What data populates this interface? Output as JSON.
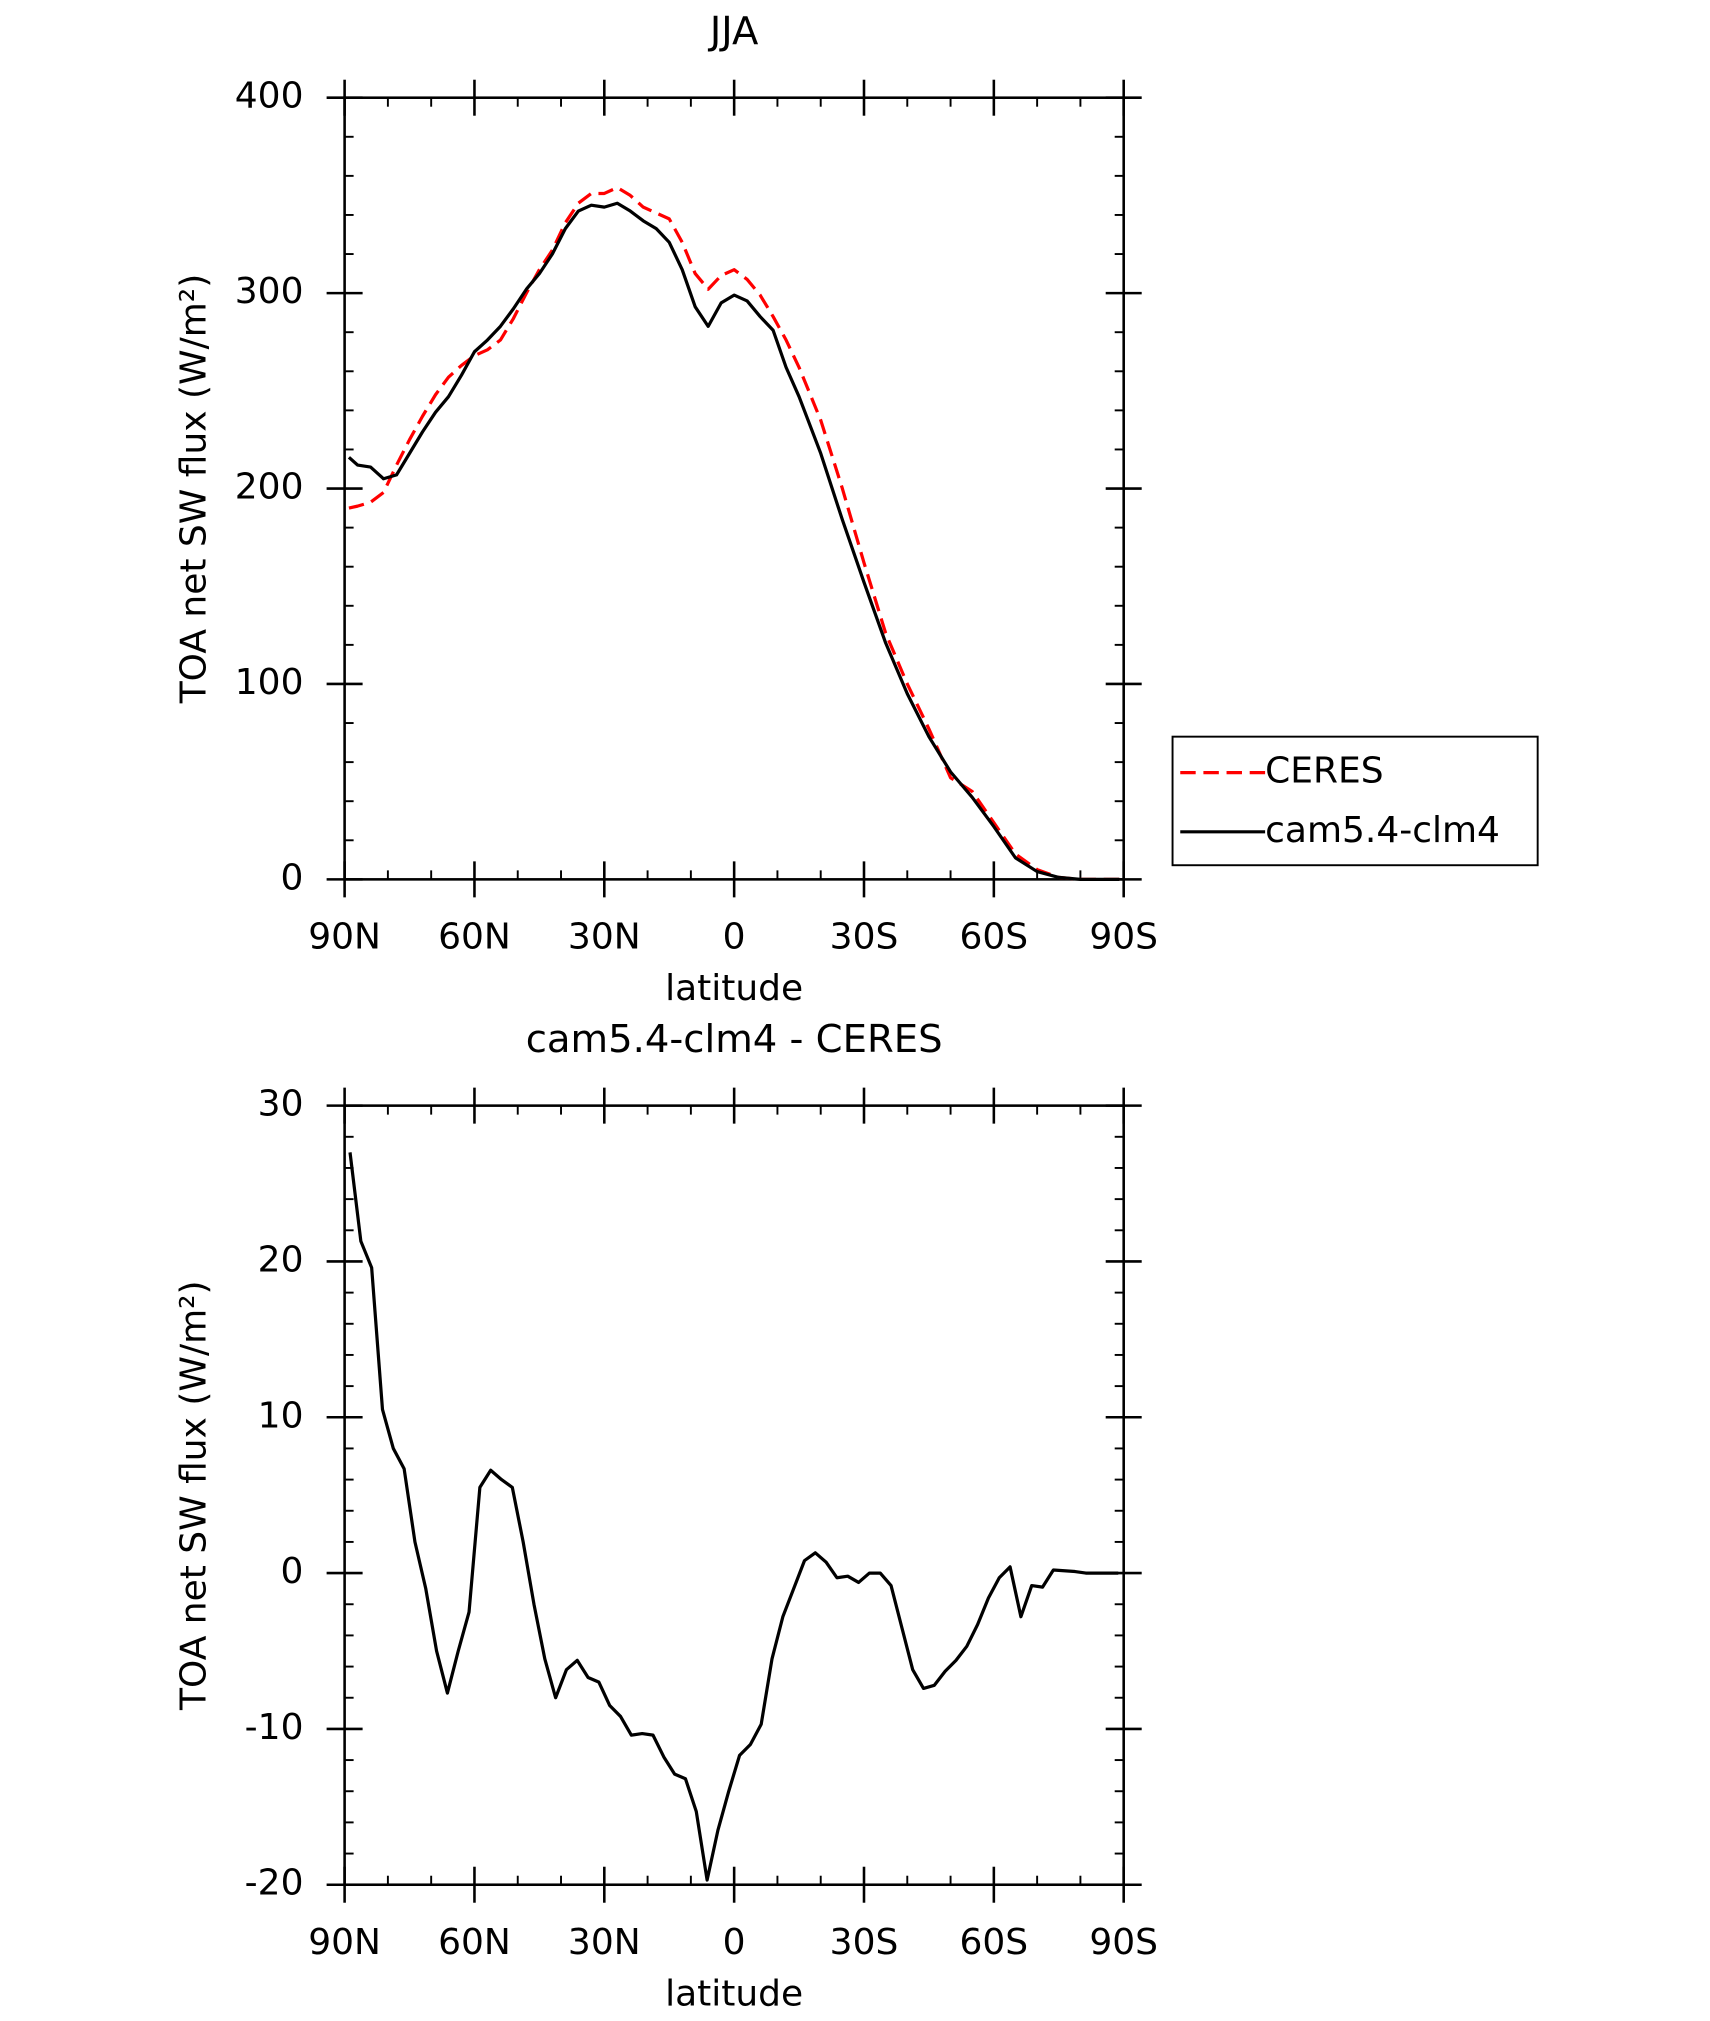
{
  "chart_data": [
    {
      "type": "line",
      "title": "JJA",
      "xlabel": "latitude",
      "ylabel": "TOA net SW flux (W/m²)",
      "x": [
        89,
        87,
        84,
        81,
        78,
        75,
        72,
        69,
        66,
        63,
        60,
        57,
        54,
        51,
        48,
        45,
        42,
        39,
        36,
        33,
        30,
        27,
        24,
        21,
        18,
        15,
        12,
        9,
        6,
        3,
        0,
        -3,
        -6,
        -9,
        -12,
        -15,
        -20,
        -25,
        -30,
        -35,
        -40,
        -45,
        -50,
        -55,
        -60,
        -65,
        -70,
        -75,
        -80,
        -85,
        -89
      ],
      "series": [
        {
          "name": "CERES",
          "color": "#ff0000",
          "dash": true,
          "values": [
            190,
            191,
            193,
            198,
            212,
            225,
            237,
            248,
            257,
            263,
            268,
            271,
            276,
            287,
            300,
            312,
            322,
            336,
            346,
            351,
            351,
            354,
            350,
            344,
            341,
            338,
            326,
            310,
            302,
            309,
            312,
            307,
            299,
            288,
            276,
            262,
            235,
            200,
            162,
            126,
            100,
            77,
            52,
            45,
            29,
            13,
            5,
            1,
            0,
            0,
            0
          ]
        },
        {
          "name": "cam5.4-clm4",
          "color": "#000000",
          "dash": false,
          "values": [
            216,
            212,
            211,
            205,
            207,
            218,
            229,
            239,
            247,
            258,
            270,
            276,
            283,
            292,
            302,
            310,
            320,
            333,
            342,
            345,
            344,
            346,
            342,
            337,
            333,
            326,
            312,
            293,
            283,
            295,
            299,
            296,
            288,
            281,
            262,
            247,
            218,
            184,
            152,
            121,
            95,
            73,
            55,
            42,
            27,
            11,
            4,
            1,
            0,
            0,
            0
          ]
        }
      ],
      "xlim": [
        90,
        -90
      ],
      "xticks": [
        {
          "value": 90,
          "label": "90N"
        },
        {
          "value": 60,
          "label": "60N"
        },
        {
          "value": 30,
          "label": "30N"
        },
        0,
        {
          "value": -30,
          "label": "30S"
        },
        {
          "value": -60,
          "label": "60S"
        },
        {
          "value": -90,
          "label": "90S"
        }
      ],
      "ylim": [
        0,
        400
      ],
      "yticks": [
        0,
        100,
        200,
        300,
        400
      ],
      "legend": "right"
    },
    {
      "type": "line",
      "title": "cam5.4-clm4 - CERES",
      "xlabel": "latitude",
      "ylabel": "TOA net SW flux (W/m²)",
      "x": [
        88.75,
        86.25,
        83.75,
        81.25,
        78.75,
        76.25,
        73.75,
        71.25,
        68.75,
        66.25,
        63.75,
        61.25,
        58.75,
        56.25,
        53.75,
        51.25,
        48.75,
        46.25,
        43.75,
        41.25,
        38.75,
        36.25,
        33.75,
        31.25,
        28.75,
        26.25,
        23.75,
        21.25,
        18.75,
        16.25,
        13.75,
        11.25,
        8.75,
        6.25,
        3.75,
        1.25,
        -1.25,
        -3.75,
        -6.25,
        -8.75,
        -11.25,
        -13.75,
        -16.25,
        -18.75,
        -21.25,
        -23.75,
        -26.25,
        -28.75,
        -31.25,
        -33.75,
        -36.25,
        -38.75,
        -41.25,
        -43.75,
        -46.25,
        -48.75,
        -51.25,
        -53.75,
        -56.25,
        -58.75,
        -61.25,
        -63.75,
        -66.25,
        -68.75,
        -71.25,
        -73.75,
        -76.25,
        -78.75,
        -81.25,
        -83.75,
        -86.25,
        -88.75
      ],
      "values": [
        27,
        21.3,
        19.6,
        10.5,
        8,
        6.7,
        2,
        -1,
        -5,
        -7.7,
        -5,
        -2.5,
        5.5,
        6.6,
        6,
        5.5,
        2,
        -2,
        -5.5,
        -8,
        -6.2,
        -5.6,
        -6.7,
        -7,
        -8.5,
        -9.2,
        -10.4,
        -10.3,
        -10.4,
        -11.8,
        -12.9,
        -13.2,
        -15.3,
        -19.7,
        -16.5,
        -14,
        -11.7,
        -11,
        -9.7,
        -5.5,
        -2.8,
        -1,
        0.8,
        1.3,
        0.7,
        -0.3,
        -0.2,
        -0.6,
        0,
        0,
        -0.8,
        -3.5,
        -6.2,
        -7.4,
        -7.2,
        -6.3,
        -5.6,
        -4.7,
        -3.3,
        -1.6,
        -0.3,
        0.4,
        -2.8,
        -0.8,
        -0.9,
        0.2,
        0.15,
        0.1,
        0,
        0,
        0,
        0
      ],
      "color": "#000000",
      "xlim": [
        90,
        -90
      ],
      "xticks": [
        {
          "value": 90,
          "label": "90N"
        },
        {
          "value": 60,
          "label": "60N"
        },
        {
          "value": 30,
          "label": "30N"
        },
        0,
        {
          "value": -30,
          "label": "30S"
        },
        {
          "value": -60,
          "label": "60S"
        },
        {
          "value": -90,
          "label": "90S"
        }
      ],
      "ylim": [
        -20,
        30
      ],
      "yticks": [
        -20,
        -10,
        0,
        10,
        20,
        30
      ]
    }
  ]
}
